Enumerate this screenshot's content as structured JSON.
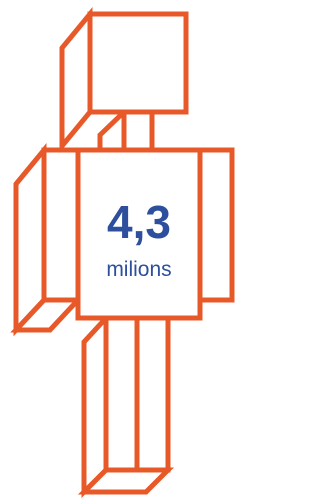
{
  "figure": {
    "value": "4,3",
    "unit": "milions"
  }
}
